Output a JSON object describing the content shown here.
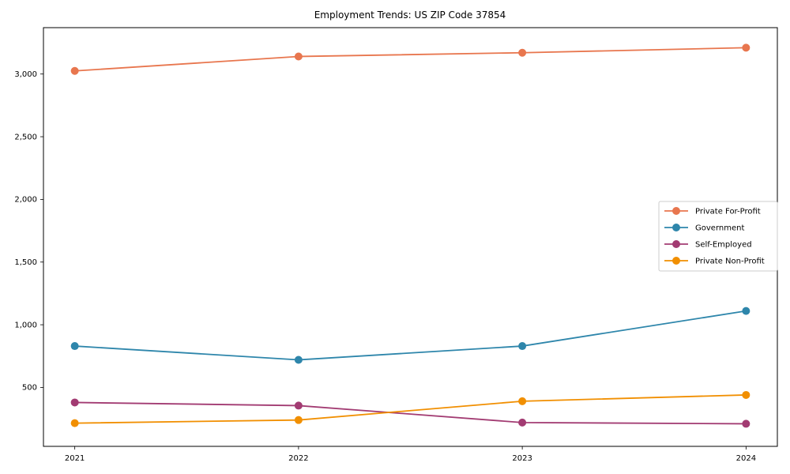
{
  "chart_data": {
    "type": "line",
    "title": "Employment Trends: US ZIP Code 37854",
    "x": [
      2021,
      2022,
      2023,
      2024
    ],
    "xtick_labels": [
      "2021",
      "2022",
      "2023",
      "2024"
    ],
    "yticks": [
      500,
      1000,
      1500,
      2000,
      2500,
      3000
    ],
    "ytick_labels": [
      "500",
      "1,000",
      "1,500",
      "2,000",
      "2,500",
      "3,000"
    ],
    "xlim": [
      2020.86,
      2024.14
    ],
    "ylim": [
      30,
      3370
    ],
    "grid": false,
    "marker": "circle",
    "series": [
      {
        "name": "Private For-Profit",
        "color": "#E8764E",
        "values": [
          3025,
          3140,
          3170,
          3210
        ]
      },
      {
        "name": "Government",
        "color": "#2E86AB",
        "values": [
          830,
          720,
          830,
          1110
        ]
      },
      {
        "name": "Self-Employed",
        "color": "#A23B72",
        "values": [
          380,
          355,
          220,
          210
        ]
      },
      {
        "name": "Private Non-Profit",
        "color": "#F18F01",
        "values": [
          215,
          240,
          390,
          440
        ]
      }
    ],
    "legend": {
      "position": "center-right",
      "entries": [
        "Private For-Profit",
        "Government",
        "Self-Employed",
        "Private Non-Profit"
      ]
    },
    "xlabel": "",
    "ylabel": ""
  },
  "frame": {
    "spine_color": "#000000",
    "background": "#ffffff",
    "legend_border": "#cccccc"
  }
}
